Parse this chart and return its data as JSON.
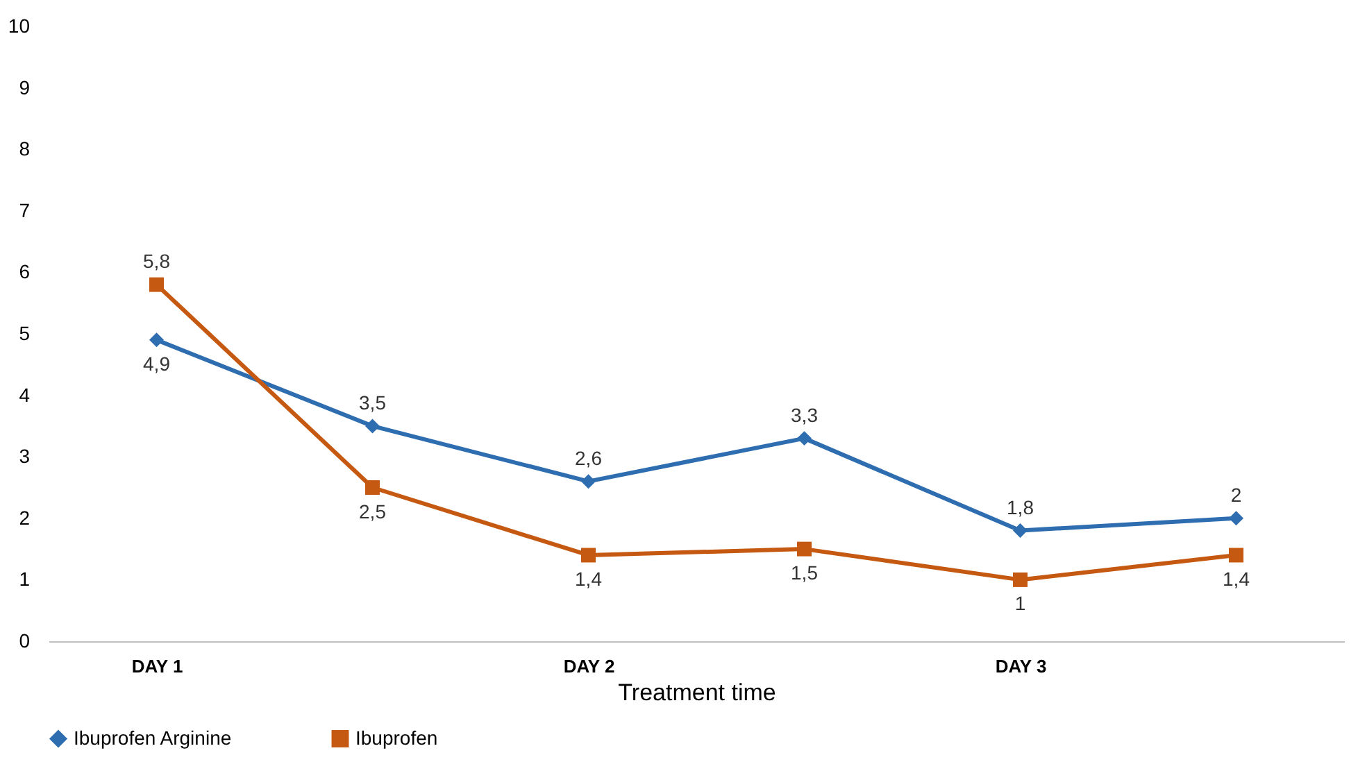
{
  "chart_data": {
    "type": "line",
    "xlabel": "Treatment time",
    "categories": [
      "DAY 1",
      null,
      "DAY 2",
      null,
      "DAY 3",
      null
    ],
    "ylim": [
      0,
      10
    ],
    "yticks": [
      0,
      1,
      2,
      3,
      4,
      5,
      6,
      7,
      8,
      9,
      10
    ],
    "series": [
      {
        "name": "Ibuprofen   Arginine",
        "color": "#2e6db0",
        "marker": "diamond",
        "values": [
          4.9,
          3.5,
          2.6,
          3.3,
          1.8,
          2
        ],
        "value_labels": [
          "4,9",
          "3,5",
          "2,6",
          "3,3",
          "1,8",
          "2"
        ]
      },
      {
        "name": "Ibuprofen",
        "color": "#c65911",
        "marker": "square",
        "values": [
          5.8,
          2.5,
          1.4,
          1.5,
          1,
          1.4
        ],
        "value_labels": [
          "5,8",
          "2,5",
          "1,4",
          "1,5",
          "1",
          "1,4"
        ]
      }
    ],
    "grid": false,
    "legend": "bottom",
    "line_style": "solid"
  }
}
